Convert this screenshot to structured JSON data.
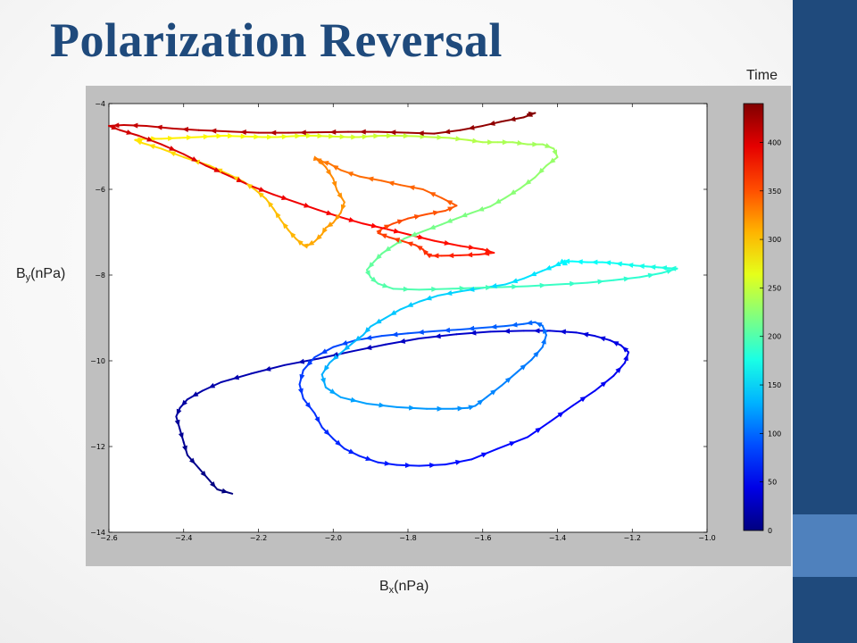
{
  "slide": {
    "title": "Polarization Reversal",
    "ylabel_main": "B",
    "ylabel_sub": "y",
    "ylabel_unit": "(nPa)",
    "xlabel_main": "B",
    "xlabel_sub": "x",
    "xlabel_unit": "(nPa)",
    "colorbar_label": "Time"
  },
  "colors": {
    "slide_accent": "#1f4a7c",
    "accent_light": "#4f81bd",
    "plot_bg": "#bfbfbf"
  },
  "chart_data": {
    "type": "line",
    "title": "",
    "xlabel": "Bx(nPa)",
    "ylabel": "By(nPa)",
    "xlim": [
      -2.6,
      -1.0
    ],
    "ylim": [
      -14,
      -4
    ],
    "xticks": [
      -2.6,
      -2.4,
      -2.2,
      -2.0,
      -1.8,
      -1.6,
      -1.4,
      -1.2,
      -1.0
    ],
    "yticks": [
      -14,
      -12,
      -10,
      -8,
      -6,
      -4
    ],
    "grid": false,
    "colormap": "jet",
    "colorbar": {
      "label": "Time",
      "range": [
        0,
        440
      ],
      "ticks": [
        0,
        50,
        100,
        150,
        200,
        250,
        300,
        350,
        400
      ]
    },
    "markers": "arrow",
    "series": [
      {
        "x": [
          -2.27,
          -2.31,
          -2.33,
          -2.36,
          -2.39,
          -2.4,
          -2.41,
          -2.42,
          -2.41,
          -2.39,
          -2.35,
          -2.3,
          -2.22,
          -2.13,
          -2.04,
          -1.95,
          -1.86,
          -1.77,
          -1.67,
          -1.58,
          -1.49,
          -1.42,
          -1.35,
          -1.3,
          -1.26,
          -1.23,
          -1.21,
          -1.22,
          -1.25,
          -1.3,
          -1.36,
          -1.42,
          -1.48,
          -1.56,
          -1.63,
          -1.7,
          -1.77,
          -1.83,
          -1.88,
          -1.93,
          -1.97,
          -2.0,
          -2.03,
          -2.05,
          -2.08,
          -2.09,
          -2.08,
          -2.05,
          -2.0,
          -1.94,
          -1.87,
          -1.8,
          -1.73,
          -1.66,
          -1.6,
          -1.54,
          -1.49,
          -1.46,
          -1.44,
          -1.43,
          -1.44,
          -1.47,
          -1.51,
          -1.55,
          -1.59,
          -1.62,
          -1.64,
          -1.68,
          -1.75,
          -1.83,
          -1.91,
          -1.98,
          -2.02,
          -2.03,
          -2.01,
          -1.98,
          -1.95,
          -1.92,
          -1.9,
          -1.86,
          -1.82,
          -1.77,
          -1.72,
          -1.66,
          -1.6,
          -1.54,
          -1.49,
          -1.44,
          -1.41,
          -1.39,
          -1.38,
          -1.38,
          -1.39,
          -1.36,
          -1.32,
          -1.28,
          -1.25,
          -1.22,
          -1.19,
          -1.16,
          -1.13,
          -1.1,
          -1.08,
          -1.12,
          -1.18,
          -1.25,
          -1.32,
          -1.4,
          -1.48,
          -1.55,
          -1.62,
          -1.69,
          -1.77,
          -1.84,
          -1.88,
          -1.9,
          -1.91,
          -1.89,
          -1.87,
          -1.84,
          -1.81,
          -1.76,
          -1.71,
          -1.67,
          -1.63,
          -1.58,
          -1.54,
          -1.5,
          -1.46,
          -1.43,
          -1.4,
          -1.41,
          -1.44,
          -1.48,
          -1.52,
          -1.56,
          -1.6,
          -1.64,
          -1.69,
          -1.74,
          -1.78,
          -1.83,
          -1.87,
          -1.9,
          -1.93,
          -1.96,
          -1.99,
          -2.02,
          -2.05,
          -2.08,
          -2.11,
          -2.15,
          -2.19,
          -2.22,
          -2.26,
          -2.29,
          -2.32,
          -2.36,
          -2.41,
          -2.46,
          -2.5,
          -2.53,
          -2.51,
          -2.46,
          -2.4,
          -2.33,
          -2.28,
          -2.24,
          -2.21,
          -2.18,
          -2.16,
          -2.14,
          -2.12,
          -2.1,
          -2.08,
          -2.07,
          -2.05,
          -2.03,
          -2.02,
          -2.0,
          -1.98,
          -1.97,
          -1.99,
          -2.0,
          -2.02,
          -2.04,
          -2.05,
          -2.03,
          -2.01,
          -1.98,
          -1.93,
          -1.87,
          -1.82,
          -1.76,
          -1.71,
          -1.67,
          -1.7,
          -1.75,
          -1.8,
          -1.84,
          -1.87,
          -1.88,
          -1.85,
          -1.81,
          -1.78,
          -1.76,
          -1.75,
          -1.74,
          -1.71,
          -1.66,
          -1.61,
          -1.57,
          -1.6,
          -1.66,
          -1.73,
          -1.8,
          -1.86,
          -1.92,
          -1.98,
          -2.04,
          -2.1,
          -2.16,
          -2.22,
          -2.28,
          -2.34,
          -2.4,
          -2.46,
          -2.52,
          -2.57,
          -2.6,
          -2.56,
          -2.5,
          -2.43,
          -2.36,
          -2.28,
          -2.2,
          -2.12,
          -2.04,
          -1.96,
          -1.88,
          -1.8,
          -1.73,
          -1.66,
          -1.6,
          -1.55,
          -1.49,
          -1.46,
          -1.48
        ],
        "y": [
          -13.1,
          -13.0,
          -12.8,
          -12.5,
          -12.2,
          -11.9,
          -11.6,
          -11.3,
          -11.1,
          -10.9,
          -10.7,
          -10.5,
          -10.3,
          -10.1,
          -9.95,
          -9.78,
          -9.62,
          -9.48,
          -9.38,
          -9.32,
          -9.3,
          -9.3,
          -9.34,
          -9.42,
          -9.52,
          -9.64,
          -9.8,
          -10.05,
          -10.35,
          -10.7,
          -11.05,
          -11.42,
          -11.78,
          -12.05,
          -12.3,
          -12.42,
          -12.45,
          -12.43,
          -12.37,
          -12.22,
          -12.05,
          -11.82,
          -11.55,
          -11.22,
          -10.88,
          -10.55,
          -10.22,
          -9.92,
          -9.68,
          -9.52,
          -9.42,
          -9.36,
          -9.31,
          -9.27,
          -9.23,
          -9.19,
          -9.14,
          -9.1,
          -9.18,
          -9.4,
          -9.68,
          -9.98,
          -10.28,
          -10.58,
          -10.85,
          -11.05,
          -11.1,
          -11.12,
          -11.12,
          -11.08,
          -11.0,
          -10.85,
          -10.62,
          -10.32,
          -10.05,
          -9.82,
          -9.6,
          -9.4,
          -9.2,
          -9.0,
          -8.8,
          -8.62,
          -8.48,
          -8.38,
          -8.3,
          -8.22,
          -8.08,
          -7.9,
          -7.8,
          -7.72,
          -7.7,
          -7.72,
          -7.68,
          -7.68,
          -7.7,
          -7.7,
          -7.72,
          -7.75,
          -7.78,
          -7.8,
          -7.82,
          -7.84,
          -7.85,
          -7.95,
          -8.05,
          -8.12,
          -8.18,
          -8.22,
          -8.26,
          -8.28,
          -8.3,
          -8.32,
          -8.34,
          -8.32,
          -8.2,
          -8.05,
          -7.88,
          -7.68,
          -7.5,
          -7.32,
          -7.15,
          -6.98,
          -6.82,
          -6.68,
          -6.55,
          -6.4,
          -6.2,
          -5.98,
          -5.72,
          -5.45,
          -5.25,
          -5.05,
          -4.95,
          -4.95,
          -4.9,
          -4.9,
          -4.9,
          -4.85,
          -4.8,
          -4.78,
          -4.76,
          -4.75,
          -4.75,
          -4.76,
          -4.78,
          -4.78,
          -4.77,
          -4.76,
          -4.75,
          -4.75,
          -4.76,
          -4.78,
          -4.78,
          -4.77,
          -4.76,
          -4.75,
          -4.76,
          -4.78,
          -4.8,
          -4.82,
          -4.82,
          -4.85,
          -4.92,
          -5.05,
          -5.25,
          -5.45,
          -5.65,
          -5.82,
          -6.0,
          -6.22,
          -6.45,
          -6.72,
          -6.95,
          -7.15,
          -7.3,
          -7.32,
          -7.22,
          -7.05,
          -6.9,
          -6.78,
          -6.55,
          -6.3,
          -6.02,
          -5.75,
          -5.48,
          -5.3,
          -5.28,
          -5.35,
          -5.4,
          -5.55,
          -5.7,
          -5.8,
          -5.9,
          -6.0,
          -6.2,
          -6.38,
          -6.5,
          -6.58,
          -6.68,
          -6.8,
          -6.92,
          -7.02,
          -7.12,
          -7.22,
          -7.3,
          -7.4,
          -7.5,
          -7.55,
          -7.55,
          -7.54,
          -7.52,
          -7.48,
          -7.4,
          -7.32,
          -7.2,
          -7.05,
          -6.92,
          -6.8,
          -6.65,
          -6.48,
          -6.3,
          -6.12,
          -5.92,
          -5.68,
          -5.45,
          -5.18,
          -4.95,
          -4.75,
          -4.62,
          -4.52,
          -4.5,
          -4.52,
          -4.58,
          -4.62,
          -4.65,
          -4.68,
          -4.68,
          -4.67,
          -4.66,
          -4.66,
          -4.68,
          -4.7,
          -4.62,
          -4.52,
          -4.42,
          -4.32,
          -4.22,
          -4.25
        ]
      }
    ]
  }
}
